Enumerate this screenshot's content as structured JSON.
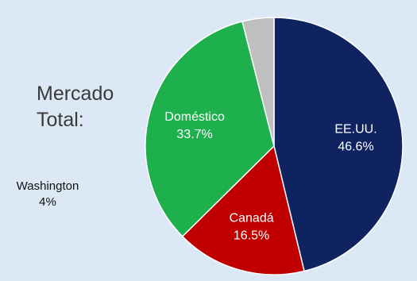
{
  "title_lines": [
    "Mercado",
    "Total:"
  ],
  "chart_data": {
    "type": "pie",
    "title": "Mercado Total:",
    "start_angle_deg": 0,
    "direction": "clockwise",
    "slices": [
      {
        "label": "EE.UU.",
        "value": 46.6,
        "display": "46.6%",
        "color": "#0f2361",
        "label_color": "#ffffff"
      },
      {
        "label": "Canadá",
        "value": 16.5,
        "display": "16.5%",
        "color": "#c00000",
        "label_color": "#ffffff"
      },
      {
        "label": "Doméstico",
        "value": 33.7,
        "display": "33.7%",
        "color": "#1db04c",
        "label_color": "#ffffff"
      },
      {
        "label": "Washington",
        "value": 4,
        "display": "4%",
        "color": "#bfbfbf",
        "label_color": "#111111",
        "label_outside": true
      }
    ]
  }
}
